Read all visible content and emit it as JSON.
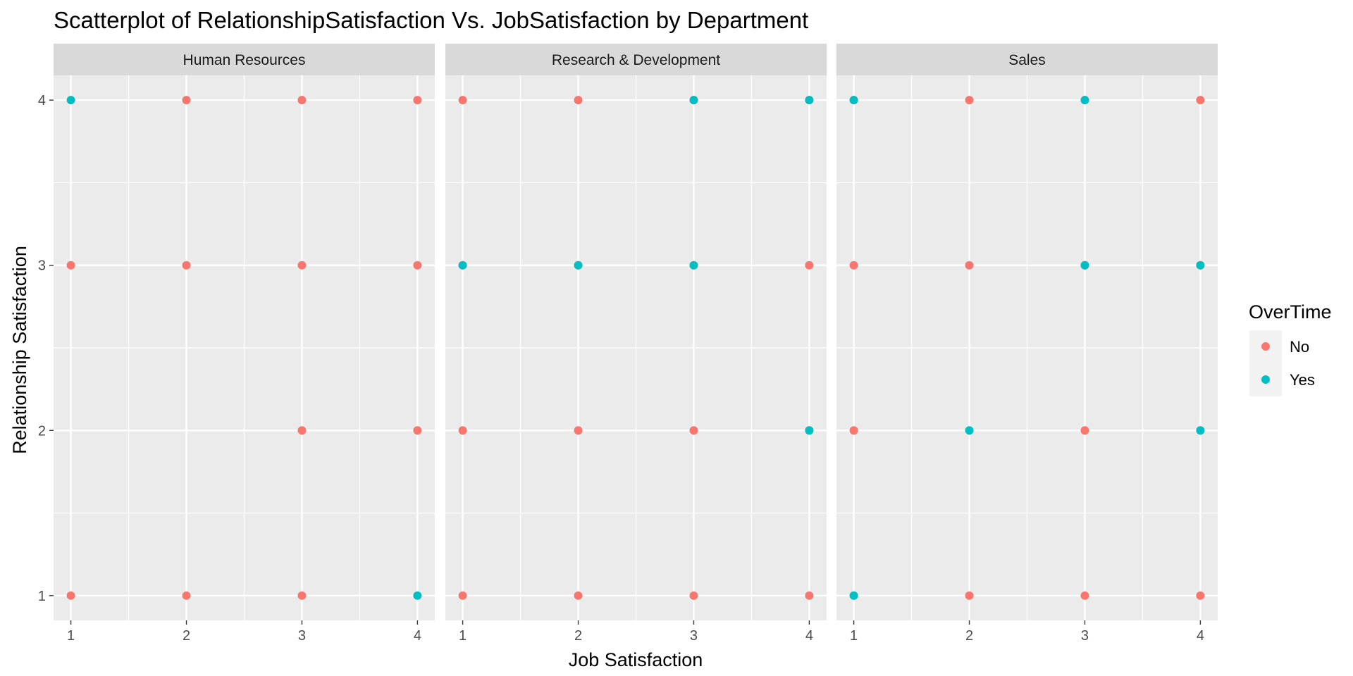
{
  "chart_data": {
    "type": "scatter",
    "title": "Scatterplot of RelationshipSatisfaction Vs. JobSatisfaction by Department",
    "xlabel": "Job Satisfaction",
    "ylabel": "Relationship Satisfaction",
    "xlim": [
      0.85,
      4.15
    ],
    "ylim": [
      0.85,
      4.15
    ],
    "x_ticks": [
      "1",
      "2",
      "3",
      "4"
    ],
    "y_ticks": [
      "1",
      "2",
      "3",
      "4"
    ],
    "grid": true,
    "legend": {
      "title": "OverTime",
      "position": "right",
      "entries": [
        {
          "label": "No",
          "color": "#F8766D"
        },
        {
          "label": "Yes",
          "color": "#00BFC4"
        }
      ]
    },
    "colors": {
      "No": "#F8766D",
      "Yes": "#00BFC4"
    },
    "facets": [
      {
        "label": "Human Resources",
        "points": [
          {
            "x": 1,
            "y": 4,
            "overtime": "Yes"
          },
          {
            "x": 2,
            "y": 4,
            "overtime": "No"
          },
          {
            "x": 3,
            "y": 4,
            "overtime": "No"
          },
          {
            "x": 4,
            "y": 4,
            "overtime": "No"
          },
          {
            "x": 1,
            "y": 3,
            "overtime": "No"
          },
          {
            "x": 2,
            "y": 3,
            "overtime": "No"
          },
          {
            "x": 3,
            "y": 3,
            "overtime": "No"
          },
          {
            "x": 4,
            "y": 3,
            "overtime": "No"
          },
          {
            "x": 3,
            "y": 2,
            "overtime": "No"
          },
          {
            "x": 4,
            "y": 2,
            "overtime": "No"
          },
          {
            "x": 1,
            "y": 1,
            "overtime": "No"
          },
          {
            "x": 2,
            "y": 1,
            "overtime": "No"
          },
          {
            "x": 3,
            "y": 1,
            "overtime": "No"
          },
          {
            "x": 4,
            "y": 1,
            "overtime": "Yes"
          }
        ]
      },
      {
        "label": "Research & Development",
        "points": [
          {
            "x": 1,
            "y": 4,
            "overtime": "No"
          },
          {
            "x": 2,
            "y": 4,
            "overtime": "No"
          },
          {
            "x": 3,
            "y": 4,
            "overtime": "No"
          },
          {
            "x": 3,
            "y": 4,
            "overtime": "Yes"
          },
          {
            "x": 4,
            "y": 4,
            "overtime": "No"
          },
          {
            "x": 4,
            "y": 4,
            "overtime": "Yes"
          },
          {
            "x": 1,
            "y": 3,
            "overtime": "No"
          },
          {
            "x": 1,
            "y": 3,
            "overtime": "Yes"
          },
          {
            "x": 2,
            "y": 3,
            "overtime": "No"
          },
          {
            "x": 2,
            "y": 3,
            "overtime": "Yes"
          },
          {
            "x": 3,
            "y": 3,
            "overtime": "No"
          },
          {
            "x": 3,
            "y": 3,
            "overtime": "Yes"
          },
          {
            "x": 4,
            "y": 3,
            "overtime": "No"
          },
          {
            "x": 1,
            "y": 2,
            "overtime": "No"
          },
          {
            "x": 2,
            "y": 2,
            "overtime": "No"
          },
          {
            "x": 3,
            "y": 2,
            "overtime": "No"
          },
          {
            "x": 4,
            "y": 2,
            "overtime": "No"
          },
          {
            "x": 4,
            "y": 2,
            "overtime": "Yes"
          },
          {
            "x": 1,
            "y": 1,
            "overtime": "No"
          },
          {
            "x": 2,
            "y": 1,
            "overtime": "No"
          },
          {
            "x": 3,
            "y": 1,
            "overtime": "No"
          },
          {
            "x": 4,
            "y": 1,
            "overtime": "No"
          }
        ]
      },
      {
        "label": "Sales",
        "points": [
          {
            "x": 1,
            "y": 4,
            "overtime": "No"
          },
          {
            "x": 1,
            "y": 4,
            "overtime": "Yes"
          },
          {
            "x": 2,
            "y": 4,
            "overtime": "No"
          },
          {
            "x": 3,
            "y": 4,
            "overtime": "No"
          },
          {
            "x": 3,
            "y": 4,
            "overtime": "Yes"
          },
          {
            "x": 4,
            "y": 4,
            "overtime": "No"
          },
          {
            "x": 1,
            "y": 3,
            "overtime": "No"
          },
          {
            "x": 2,
            "y": 3,
            "overtime": "No"
          },
          {
            "x": 3,
            "y": 3,
            "overtime": "No"
          },
          {
            "x": 3,
            "y": 3,
            "overtime": "Yes"
          },
          {
            "x": 4,
            "y": 3,
            "overtime": "No"
          },
          {
            "x": 4,
            "y": 3,
            "overtime": "Yes"
          },
          {
            "x": 1,
            "y": 2,
            "overtime": "No"
          },
          {
            "x": 2,
            "y": 2,
            "overtime": "Yes"
          },
          {
            "x": 3,
            "y": 2,
            "overtime": "No"
          },
          {
            "x": 4,
            "y": 2,
            "overtime": "No"
          },
          {
            "x": 4,
            "y": 2,
            "overtime": "Yes"
          },
          {
            "x": 1,
            "y": 1,
            "overtime": "No"
          },
          {
            "x": 1,
            "y": 1,
            "overtime": "Yes"
          },
          {
            "x": 2,
            "y": 1,
            "overtime": "No"
          },
          {
            "x": 3,
            "y": 1,
            "overtime": "No"
          },
          {
            "x": 4,
            "y": 1,
            "overtime": "No"
          }
        ]
      }
    ]
  }
}
